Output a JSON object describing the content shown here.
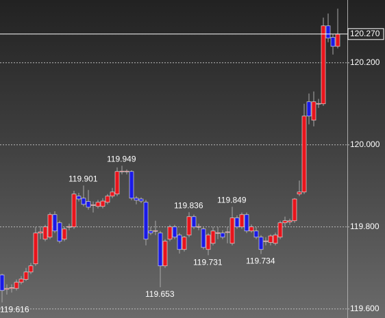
{
  "chart_data": {
    "type": "candlestick",
    "open": [
      119.683,
      119.648,
      119.65,
      119.65,
      119.665,
      119.672,
      119.69,
      119.71,
      119.785,
      119.77,
      119.775,
      119.83,
      119.81,
      119.77,
      119.8,
      119.8,
      119.875,
      119.87,
      119.862,
      119.853,
      119.85,
      119.85,
      119.86,
      119.875,
      119.88,
      119.935,
      119.935,
      119.935,
      119.87,
      119.868,
      119.86,
      119.79,
      119.79,
      119.785,
      119.705,
      119.77,
      119.8,
      119.78,
      119.745,
      119.78,
      119.825,
      119.8,
      119.795,
      119.745,
      119.76,
      119.785,
      119.785,
      119.787,
      119.76,
      119.822,
      119.8,
      119.83,
      119.79,
      119.79,
      119.775,
      119.765,
      119.762,
      119.76,
      119.775,
      119.81,
      119.812,
      119.815,
      119.88,
      119.885,
      120.105,
      120.06,
      120.1,
      120.1,
      120.29,
      120.262,
      120.24
    ],
    "high": [
      119.686,
      119.66,
      119.66,
      119.672,
      119.68,
      119.7,
      119.712,
      119.8,
      119.802,
      119.805,
      119.835,
      119.838,
      119.815,
      119.8,
      119.808,
      119.888,
      119.883,
      119.901,
      119.89,
      119.862,
      119.866,
      119.87,
      119.88,
      119.895,
      119.945,
      119.949,
      119.94,
      119.938,
      119.875,
      119.872,
      119.866,
      119.8,
      119.815,
      119.79,
      119.77,
      119.805,
      119.805,
      119.785,
      119.778,
      119.836,
      119.83,
      119.808,
      119.8,
      119.785,
      119.8,
      119.8,
      119.792,
      119.8,
      119.849,
      119.828,
      119.835,
      119.835,
      119.806,
      119.8,
      119.78,
      119.775,
      119.782,
      119.786,
      119.815,
      119.825,
      119.82,
      119.87,
      119.913,
      120.1,
      120.125,
      120.13,
      120.112,
      120.31,
      120.32,
      120.27,
      120.332
    ],
    "low": [
      119.616,
      119.635,
      119.64,
      119.645,
      119.66,
      119.668,
      119.685,
      119.705,
      119.77,
      119.765,
      119.77,
      119.785,
      119.76,
      119.765,
      119.792,
      119.795,
      119.862,
      119.85,
      119.842,
      119.835,
      119.845,
      119.845,
      119.855,
      119.87,
      119.875,
      119.928,
      119.928,
      119.865,
      119.855,
      119.858,
      119.755,
      119.78,
      119.78,
      119.653,
      119.7,
      119.765,
      119.77,
      119.735,
      119.74,
      119.775,
      119.795,
      119.792,
      119.745,
      119.731,
      119.755,
      119.77,
      119.77,
      119.76,
      119.755,
      119.795,
      119.795,
      119.785,
      119.786,
      119.77,
      119.734,
      119.755,
      119.755,
      119.755,
      119.77,
      119.8,
      119.805,
      119.81,
      119.875,
      119.88,
      120.05,
      120.045,
      120.09,
      120.095,
      120.25,
      120.22,
      120.235
    ],
    "close": [
      119.645,
      119.65,
      119.652,
      119.665,
      119.673,
      119.69,
      119.705,
      119.785,
      119.788,
      119.8,
      119.83,
      119.79,
      119.765,
      119.795,
      119.801,
      119.88,
      119.868,
      119.855,
      119.848,
      119.854,
      119.86,
      119.863,
      119.875,
      119.885,
      119.935,
      119.936,
      119.936,
      119.87,
      119.865,
      119.863,
      119.77,
      119.785,
      119.791,
      119.705,
      119.765,
      119.8,
      119.775,
      119.745,
      119.775,
      119.825,
      119.8,
      119.801,
      119.75,
      119.78,
      119.79,
      119.786,
      119.775,
      119.788,
      119.822,
      119.8,
      119.83,
      119.79,
      119.8,
      119.775,
      119.745,
      119.766,
      119.778,
      119.78,
      119.81,
      119.815,
      119.815,
      119.868,
      119.885,
      120.07,
      120.07,
      120.105,
      120.101,
      120.29,
      120.26,
      120.24,
      120.27
    ],
    "up_color": "#e8141c",
    "down_color": "#1a1ae6",
    "ylim": [
      119.578,
      120.353
    ],
    "yticks": [
      {
        "value": 119.6,
        "label": "119.600"
      },
      {
        "value": 119.8,
        "label": "119.800"
      },
      {
        "value": 120.0,
        "label": "120.000"
      },
      {
        "value": 120.2,
        "label": "120.200"
      }
    ],
    "grid": true,
    "last_price": {
      "value": 120.27,
      "label": "120.270"
    },
    "annotations": [
      {
        "value": 119.616,
        "at": 0
      },
      {
        "value": 119.901,
        "at": 17
      },
      {
        "value": 119.949,
        "at": 25
      },
      {
        "value": 119.653,
        "at": 33
      },
      {
        "value": 119.836,
        "at": 39
      },
      {
        "value": 119.731,
        "at": 43
      },
      {
        "value": 119.849,
        "at": 48
      },
      {
        "value": 119.734,
        "at": 54
      }
    ]
  }
}
